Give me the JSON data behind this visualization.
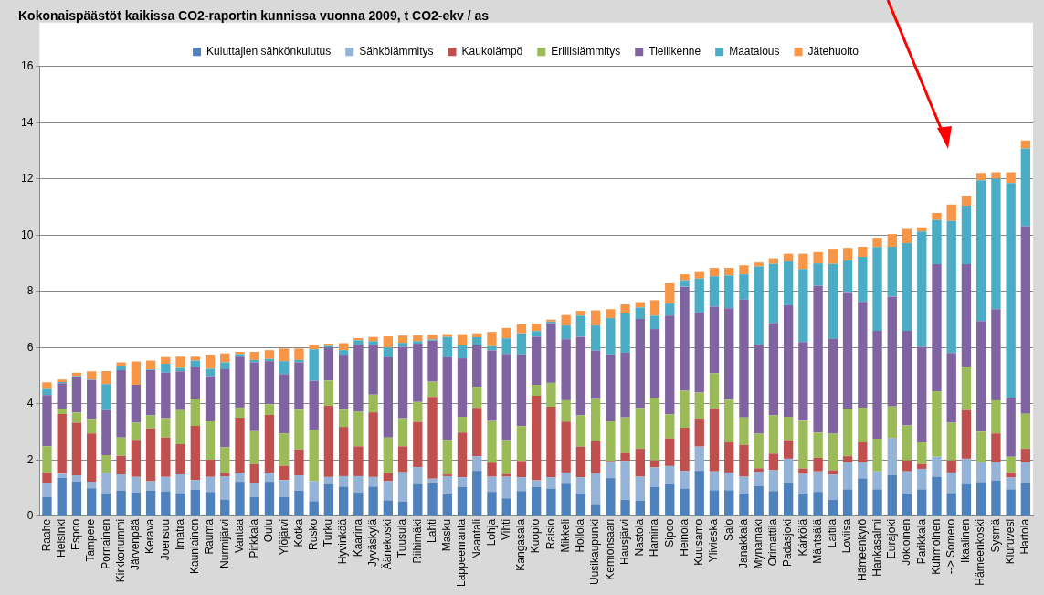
{
  "chart_data": {
    "type": "bar",
    "title": "Kokonaispäästöt kaikissa CO2-raportin kunnissa vuonna 2009, t CO2-ekv / as",
    "categories": [
      "Raahe",
      "Helsinki",
      "Espoo",
      "Tampere",
      "Pornainen",
      "Kirkkonummi",
      "Järvenpää",
      "Kerava",
      "Joensuu",
      "Imatra",
      "Kauniainen",
      "Rauma",
      "Nurmijärvi",
      "Vantaa",
      "Pirkkala",
      "Oulu",
      "Ylöjärvi",
      "Kotka",
      "Rusko",
      "Turku",
      "Hyvinkää",
      "Kaarina",
      "Jyväskylä",
      "Äänekoski",
      "Tuusula",
      "Riihimäki",
      "Lahti",
      "Masku",
      "Lappeenranta",
      "Naantali",
      "Lohja",
      "Vihti",
      "Kangasala",
      "Kuopio",
      "Raisio",
      "Mikkeli",
      "Hollola",
      "Uusikaupunki",
      "Kemiönsaari",
      "Hausjärvi",
      "Nastola",
      "Hamina",
      "Sipoo",
      "Heinola",
      "Kuusamo",
      "Ylivieska",
      "Salo",
      "Janakkala",
      "Mynämäki",
      "Orimattila",
      "Padasjoki",
      "Kärkölä",
      "Mäntsälä",
      "Laitila",
      "Loviisa",
      "Hämeenkyrö",
      "Hankasalmi",
      "Eurajoki",
      "Jokioinen",
      "Parikkala",
      "Kuhmoinen",
      "--> Somero",
      "Ikaalinen",
      "Hämeenkoski",
      "Sysmä",
      "Kiuruvesi",
      "Hartola"
    ],
    "series": [
      {
        "name": "Kuluttajien sähkönkulutus",
        "color": "#4f81bd",
        "values": [
          0.69,
          1.37,
          1.23,
          1.0,
          0.83,
          0.92,
          0.85,
          0.91,
          0.89,
          0.83,
          0.94,
          0.87,
          0.6,
          1.23,
          0.69,
          1.23,
          0.69,
          0.91,
          0.54,
          1.15,
          1.06,
          0.85,
          1.06,
          0.57,
          0.53,
          1.15,
          1.17,
          0.79,
          1.05,
          1.62,
          0.87,
          0.64,
          0.9,
          1.05,
          0.99,
          1.16,
          0.82,
          0.44,
          1.36,
          0.59,
          0.55,
          1.05,
          1.14,
          0.99,
          1.62,
          0.93,
          0.93,
          0.82,
          1.07,
          0.9,
          1.18,
          0.82,
          0.87,
          0.59,
          0.96,
          1.35,
          0.96,
          1.47,
          0.81,
          0.96,
          1.41,
          0.83,
          1.15,
          1.22,
          1.28,
          0.96,
          1.19
        ]
      },
      {
        "name": "Sähkölämmitys",
        "color": "#95b3d7",
        "values": [
          0.51,
          0.15,
          0.23,
          0.23,
          0.71,
          0.57,
          0.55,
          0.34,
          0.51,
          0.66,
          0.35,
          0.53,
          0.83,
          0.31,
          0.51,
          0.31,
          0.6,
          0.55,
          0.71,
          0.25,
          0.37,
          0.58,
          0.34,
          0.68,
          1.04,
          0.6,
          0.17,
          0.64,
          0.34,
          0.52,
          0.54,
          0.77,
          0.49,
          0.23,
          0.4,
          0.4,
          0.57,
          1.09,
          0.57,
          1.38,
          0.86,
          0.69,
          0.65,
          0.63,
          0.86,
          0.67,
          0.63,
          0.59,
          0.52,
          0.74,
          0.87,
          0.69,
          0.73,
          0.89,
          0.96,
          0.57,
          0.64,
          1.32,
          0.79,
          0.73,
          0.71,
          0.73,
          0.9,
          0.7,
          0.64,
          0.42,
          0.73
        ]
      },
      {
        "name": "Kaukolämpö",
        "color": "#c0504d",
        "values": [
          0.36,
          2.12,
          1.87,
          1.72,
          0,
          0.66,
          1.32,
          1.88,
          1.4,
          1.08,
          1.93,
          0.61,
          0.11,
          1.97,
          0.66,
          2.07,
          0.51,
          0.92,
          0,
          2.53,
          1.75,
          1.06,
          2.3,
          0.29,
          0.92,
          1.61,
          2.91,
          0.06,
          1.59,
          1.72,
          0.5,
          0.1,
          0.58,
          3.01,
          2.51,
          1.81,
          1.09,
          1.15,
          0.04,
          0.28,
          0.99,
          0.25,
          0.98,
          1.53,
          1.0,
          2.23,
          1.07,
          1.13,
          0.12,
          0.59,
          0.66,
          0.19,
          0.48,
          0.16,
          0.22,
          0.71,
          0,
          0,
          0.39,
          0.17,
          0,
          0.43,
          1.73,
          0,
          1.03,
          0.18,
          0.48
        ]
      },
      {
        "name": "Erillislämmitys",
        "color": "#9bbb59",
        "values": [
          0.93,
          0.18,
          0.37,
          0.52,
          0.64,
          0.65,
          0.61,
          0.46,
          0.69,
          1.21,
          0.94,
          1.37,
          0.92,
          0.36,
          1.17,
          0.38,
          1.15,
          1.41,
          1.82,
          0.9,
          0.61,
          1.23,
          0.63,
          1.26,
          1.0,
          0.71,
          0.54,
          1.23,
          0.56,
          0.75,
          1.48,
          1.2,
          1.24,
          0.39,
          0.85,
          0.76,
          1.12,
          1.49,
          1.41,
          1.27,
          1.46,
          2.22,
          0.86,
          1.32,
          0.92,
          1.26,
          1.52,
          0.98,
          1.23,
          1.37,
          0.83,
          1.7,
          0.9,
          1.3,
          1.68,
          1.24,
          1.16,
          1.12,
          1.24,
          0.77,
          2.33,
          1.34,
          1.54,
          1.09,
          1.18,
          0.56,
          1.25
        ]
      },
      {
        "name": "Tieliikenne",
        "color": "#8064a2",
        "values": [
          1.82,
          0.92,
          1.24,
          1.38,
          1.6,
          2.4,
          1.35,
          1.61,
          1.62,
          1.38,
          1.15,
          1.61,
          2.77,
          1.81,
          2.45,
          1.53,
          2.11,
          1.69,
          1.75,
          1.17,
          1.96,
          2.39,
          1.78,
          2.86,
          2.54,
          2.07,
          1.46,
          2.94,
          2.08,
          1.47,
          2.51,
          3.07,
          2.55,
          1.71,
          2.12,
          2.17,
          2.79,
          1.73,
          2.38,
          2.3,
          3.16,
          2.45,
          3.51,
          3.7,
          2.85,
          2.37,
          3.25,
          4.19,
          3.16,
          3.27,
          3.97,
          2.8,
          5.22,
          3.37,
          4.13,
          3.76,
          3.84,
          3.91,
          3.37,
          3.4,
          4.52,
          2.48,
          3.65,
          3.94,
          3.24,
          2.09,
          6.67
        ]
      },
      {
        "name": "Maatalous",
        "color": "#4bacc6",
        "values": [
          0.22,
          0.04,
          0.05,
          0.02,
          0.92,
          0.16,
          0,
          0.02,
          0.32,
          0.12,
          0.23,
          0.26,
          0.25,
          0.09,
          0.08,
          0.08,
          0.46,
          0.08,
          1.12,
          0.06,
          0.16,
          0.15,
          0.12,
          0.34,
          0.14,
          0.09,
          0.04,
          0.72,
          0.46,
          0.29,
          0.15,
          0.55,
          0.75,
          0.2,
          0.06,
          0.49,
          0.75,
          0.89,
          1.29,
          1.4,
          0.41,
          0.48,
          0.43,
          0.23,
          1.21,
          1.08,
          1.17,
          0.9,
          2.79,
          2.11,
          1.56,
          2.6,
          0.8,
          2.67,
          1.15,
          1.6,
          2.98,
          1.77,
          3.12,
          4.1,
          1.57,
          4.7,
          2.08,
          5.0,
          4.64,
          7.65,
          2.76
        ]
      },
      {
        "name": "Jätehuolto",
        "color": "#f79646",
        "values": [
          0.24,
          0.09,
          0.12,
          0.29,
          0.47,
          0.12,
          0.83,
          0.32,
          0.23,
          0.4,
          0.14,
          0.5,
          0.31,
          0.08,
          0.29,
          0.31,
          0.45,
          0.41,
          0.14,
          0.08,
          0.25,
          0.08,
          0.15,
          0.4,
          0.26,
          0.21,
          0.17,
          0.1,
          0.4,
          0.14,
          0.51,
          0.37,
          0.32,
          0.26,
          0.07,
          0.37,
          0.17,
          0.54,
          0.32,
          0.32,
          0.19,
          0.55,
          0.72,
          0.21,
          0.23,
          0.3,
          0.27,
          0.32,
          0.14,
          0.2,
          0.27,
          0.54,
          0.4,
          0.54,
          0.45,
          0.36,
          0.33,
          0.45,
          0.5,
          0.15,
          0.25,
          0.58,
          0.36,
          0.26,
          0.23,
          0.38,
          0.29
        ]
      }
    ],
    "stacked": true,
    "ylim": [
      0,
      16
    ],
    "yticks": [
      0,
      2,
      4,
      6,
      8,
      10,
      12,
      14,
      16
    ],
    "grid": "y",
    "legend": "top"
  }
}
